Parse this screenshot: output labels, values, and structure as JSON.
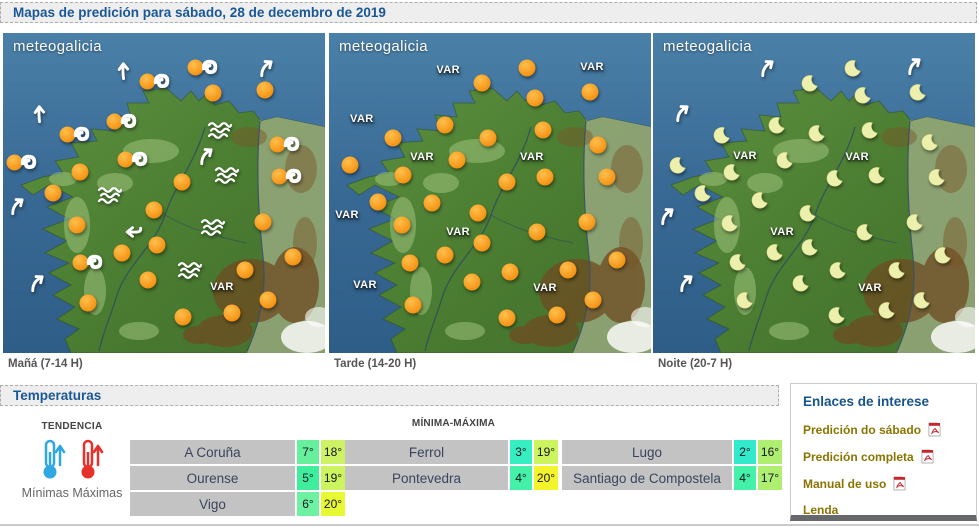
{
  "banner": {
    "title": "Mapas de predición para sábado, 28 de decembro de 2019"
  },
  "maps": [
    {
      "logo": "meteogalicia",
      "caption": "Mañá (7-14 H)",
      "icons": [
        [
          "arrow-up",
          37.6,
          11.6
        ],
        [
          "arrow-ne",
          82,
          10.6
        ],
        [
          "sun-wind",
          47.2,
          15.3
        ],
        [
          "sun-wind",
          62.1,
          10.9
        ],
        [
          "sun",
          65.2,
          18.8
        ],
        [
          "sun",
          81.4,
          17.8
        ],
        [
          "arrow-up",
          11.5,
          25
        ],
        [
          "sun-wind",
          37,
          27.8
        ],
        [
          "wave",
          67.4,
          30.3
        ],
        [
          "sun-wind",
          22.4,
          31.9
        ],
        [
          "sun-wind",
          87.6,
          35
        ],
        [
          "arrow-ne",
          63.4,
          38.1
        ],
        [
          "sun-wind",
          5.9,
          40.6
        ],
        [
          "sun-wind",
          40.4,
          39.7
        ],
        [
          "sun",
          23.9,
          43.4
        ],
        [
          "wave",
          69.6,
          44.4
        ],
        [
          "sun-wind",
          88.2,
          45
        ],
        [
          "sun",
          55.6,
          46.6
        ],
        [
          "sun",
          15.5,
          50
        ],
        [
          "wave",
          33.2,
          50.6
        ],
        [
          "arrow-ne",
          4.7,
          53.8
        ],
        [
          "sun",
          46.9,
          55.3
        ],
        [
          "sun",
          23,
          60
        ],
        [
          "wave",
          65.2,
          60.6
        ],
        [
          "sun",
          80.7,
          59.1
        ],
        [
          "arrow-left",
          40.4,
          62.2
        ],
        [
          "sun",
          47.8,
          66.3
        ],
        [
          "sun",
          37,
          68.8
        ],
        [
          "sun",
          90.1,
          70
        ],
        [
          "sun-wind",
          26.4,
          71.9
        ],
        [
          "wave",
          58.1,
          74.1
        ],
        [
          "sun",
          75.2,
          74.1
        ],
        [
          "sun",
          45,
          77.2
        ],
        [
          "arrow-ne",
          10.9,
          77.8
        ],
        [
          "var",
          68,
          79.4
        ],
        [
          "sun",
          26.4,
          84.4
        ],
        [
          "sun",
          82.3,
          83.4
        ],
        [
          "sun",
          55.9,
          88.8
        ],
        [
          "sun",
          71.1,
          87.5
        ]
      ]
    },
    {
      "logo": "meteogalicia",
      "caption": "Tarde (14-20 H)",
      "icons": [
        [
          "var",
          37,
          11.6
        ],
        [
          "sun",
          61.5,
          10.9
        ],
        [
          "var",
          81.7,
          10.6
        ],
        [
          "sun",
          47.5,
          15.6
        ],
        [
          "sun",
          81,
          18.4
        ],
        [
          "sun",
          64,
          20.3
        ],
        [
          "var",
          10.2,
          26.9
        ],
        [
          "sun",
          36,
          28.8
        ],
        [
          "sun",
          66.5,
          30.3
        ],
        [
          "sun",
          19.9,
          32.8
        ],
        [
          "sun",
          49.4,
          32.8
        ],
        [
          "sun",
          83.5,
          35
        ],
        [
          "var",
          28.9,
          38.8
        ],
        [
          "var",
          63,
          38.8
        ],
        [
          "sun",
          39.8,
          39.7
        ],
        [
          "sun",
          6.5,
          41.3
        ],
        [
          "sun",
          23,
          44.4
        ],
        [
          "sun",
          67.1,
          45
        ],
        [
          "sun",
          86.3,
          45
        ],
        [
          "sun",
          55.3,
          46.6
        ],
        [
          "sun",
          15.2,
          52.8
        ],
        [
          "sun",
          32,
          53.1
        ],
        [
          "sun",
          46.3,
          56.3
        ],
        [
          "var",
          5.6,
          56.9
        ],
        [
          "sun",
          80.1,
          59.1
        ],
        [
          "sun",
          22.7,
          60
        ],
        [
          "var",
          40.1,
          62.2
        ],
        [
          "sun",
          64.6,
          62.2
        ],
        [
          "sun",
          47.5,
          65.6
        ],
        [
          "sun",
          36,
          69.4
        ],
        [
          "sun",
          89.4,
          70.9
        ],
        [
          "sun",
          25.2,
          71.9
        ],
        [
          "sun",
          56.2,
          74.7
        ],
        [
          "sun",
          74.2,
          74.1
        ],
        [
          "sun",
          44.4,
          77.8
        ],
        [
          "var",
          11.2,
          78.8
        ],
        [
          "var",
          67.1,
          79.7
        ],
        [
          "sun",
          82,
          83.4
        ],
        [
          "sun",
          26.1,
          85
        ],
        [
          "sun",
          55.3,
          89.1
        ],
        [
          "sun",
          70.8,
          88.1
        ]
      ]
    },
    {
      "logo": "meteogalicia",
      "caption": "Noite (20-7 H)",
      "icons": [
        [
          "arrow-ne",
          35.7,
          10.6
        ],
        [
          "arrow-ne",
          81.4,
          10
        ],
        [
          "moon",
          62.1,
          10.9
        ],
        [
          "moon",
          48.8,
          15.6
        ],
        [
          "moon",
          82.3,
          18.4
        ],
        [
          "moon",
          65.2,
          19.4
        ],
        [
          "arrow-ne",
          9.3,
          24.7
        ],
        [
          "moon",
          38.5,
          28.8
        ],
        [
          "moon",
          67.4,
          30.3
        ],
        [
          "moon",
          21.4,
          31.9
        ],
        [
          "moon",
          50.9,
          31.3
        ],
        [
          "moon",
          86,
          34.1
        ],
        [
          "var",
          28.6,
          38.4
        ],
        [
          "var",
          63.4,
          38.8
        ],
        [
          "moon",
          41,
          39.7
        ],
        [
          "moon",
          7.8,
          41.3
        ],
        [
          "moon",
          24.5,
          43.4
        ],
        [
          "moon",
          69.6,
          44.4
        ],
        [
          "moon",
          88.2,
          45
        ],
        [
          "moon",
          56.5,
          45.3
        ],
        [
          "moon",
          15.5,
          50
        ],
        [
          "moon",
          33.2,
          52.2
        ],
        [
          "moon",
          48.1,
          56.3
        ],
        [
          "arrow-ne",
          4.7,
          56.9
        ],
        [
          "moon",
          81.4,
          59.1
        ],
        [
          "moon",
          23.9,
          59.4
        ],
        [
          "moon",
          65.8,
          62.2
        ],
        [
          "var",
          40.1,
          62.2
        ],
        [
          "moon",
          48.8,
          66.9
        ],
        [
          "moon",
          90.1,
          69.4
        ],
        [
          "moon",
          37.9,
          68.4
        ],
        [
          "moon",
          26.4,
          71.6
        ],
        [
          "moon",
          57.5,
          74.1
        ],
        [
          "moon",
          75.8,
          74.1
        ],
        [
          "arrow-ne",
          10.6,
          77.8
        ],
        [
          "moon",
          46,
          78.1
        ],
        [
          "var",
          67.4,
          79.7
        ],
        [
          "moon",
          28.6,
          83.4
        ],
        [
          "moon",
          83.5,
          83.4
        ],
        [
          "moon",
          57.1,
          88.1
        ],
        [
          "moon",
          72.7,
          86.6
        ]
      ]
    }
  ],
  "temperatures": {
    "section_title": "Temperaturas",
    "tendencia_label": "TENDENCIA",
    "minimas_label": "Mínimas",
    "maximas_label": "Máximas",
    "table_title": "MÍNIMA-MÁXIMA",
    "min_thermo_color": "#2FA8E2",
    "max_thermo_color": "#E8302A",
    "columns": [
      {
        "rows": [
          {
            "city": "A Coruña",
            "min": "7°",
            "max": "18°",
            "min_color": "#66F09B",
            "max_color": "#CEF266"
          },
          {
            "city": "Ourense",
            "min": "5°",
            "max": "19°",
            "min_color": "#3FEE9D",
            "max_color": "#CCF45E"
          },
          {
            "city": "Vigo",
            "min": "6°",
            "max": "20°",
            "min_color": "#6CF2A2",
            "max_color": "#E8F832"
          }
        ]
      },
      {
        "rows": [
          {
            "city": "Ferrol",
            "min": "3°",
            "max": "19°",
            "min_color": "#37EEC2",
            "max_color": "#CCF45E"
          },
          {
            "city": "Pontevedra",
            "min": "4°",
            "max": "20°",
            "min_color": "#45F0A8",
            "max_color": "#F4F42C"
          }
        ]
      },
      {
        "rows": [
          {
            "city": "Lugo",
            "min": "2°",
            "max": "16°",
            "min_color": "#32E9CB",
            "max_color": "#AEEE70"
          },
          {
            "city": "Santiago de Compostela",
            "min": "4°",
            "max": "17°",
            "min_color": "#45F0A8",
            "max_color": "#AEEE70"
          }
        ]
      }
    ]
  },
  "links_panel": {
    "title": "Enlaces de interese",
    "links": [
      {
        "label": "Predición do sábado",
        "pdf": true
      },
      {
        "label": "Predición completa",
        "pdf": true
      },
      {
        "label": "Manual de uso",
        "pdf": true
      },
      {
        "label": "Lenda",
        "pdf": false
      }
    ]
  },
  "colors": {
    "accent_blue": "#1A5796",
    "link_olive": "#8A7400",
    "city_cell_gray": "#C3C3C3",
    "sea_blue": "#35688F"
  }
}
